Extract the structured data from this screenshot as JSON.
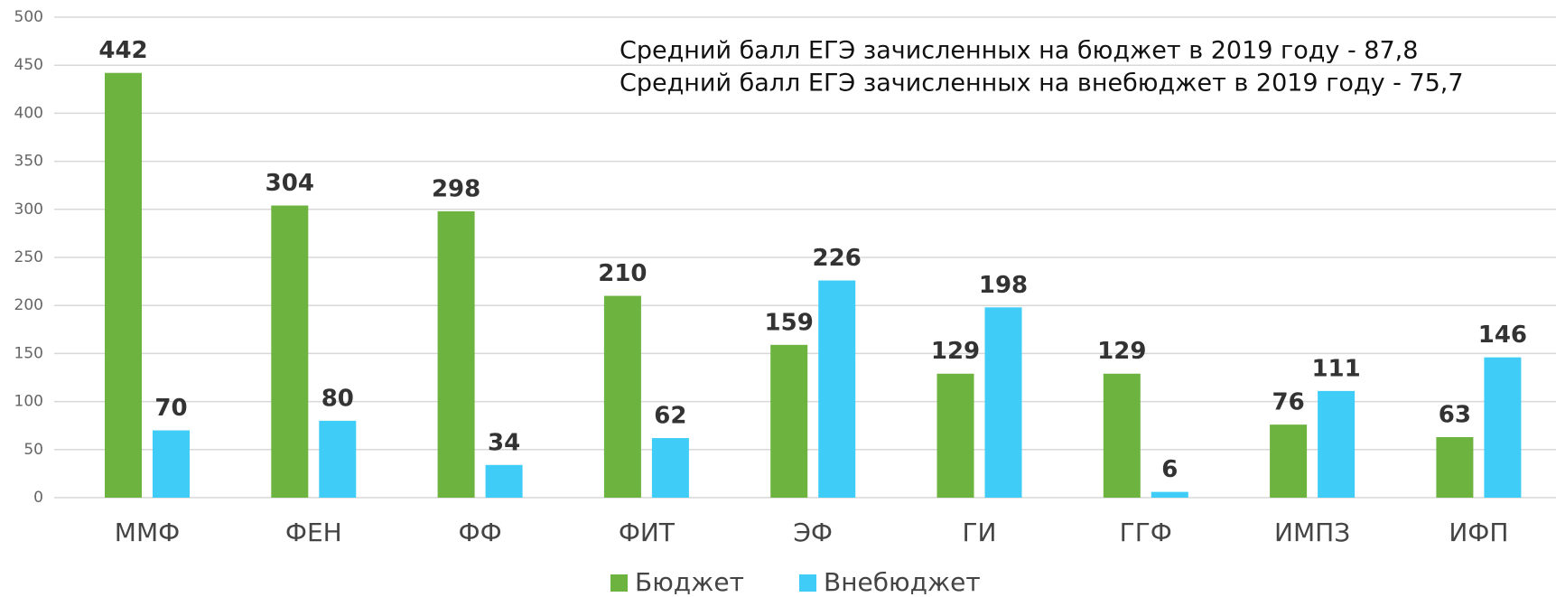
{
  "chart_data": {
    "type": "bar",
    "annotations": [
      "Средний балл ЕГЭ зачисленных на бюджет в 2019 году - 87,8",
      "Средний балл ЕГЭ зачисленных на внебюджет в 2019 году - 75,7"
    ],
    "categories": [
      "ММФ",
      "ФЕН",
      "ФФ",
      "ФИТ",
      "ЭФ",
      "ГИ",
      "ГГФ",
      "ИМПЗ",
      "ИФП"
    ],
    "series": [
      {
        "name": "Бюджет",
        "color": "#6db33f",
        "values": [
          442,
          304,
          298,
          210,
          159,
          129,
          129,
          76,
          63
        ]
      },
      {
        "name": "Внебюджет",
        "color": "#3fcdf7",
        "values": [
          70,
          80,
          34,
          62,
          226,
          198,
          6,
          111,
          146
        ]
      }
    ],
    "ylim": [
      0,
      500
    ],
    "yticks": [
      0,
      50,
      100,
      150,
      200,
      250,
      300,
      350,
      400,
      450,
      500
    ],
    "grid": true,
    "legend": "bottom"
  }
}
